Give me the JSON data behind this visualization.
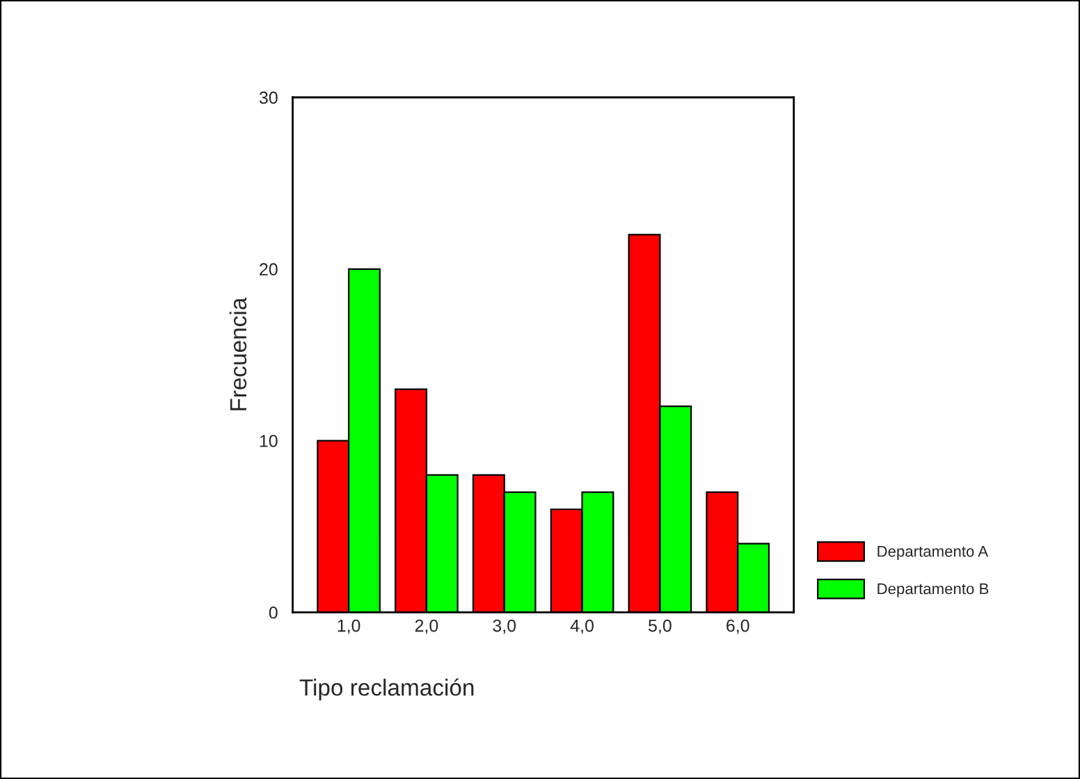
{
  "chart_data": {
    "type": "bar",
    "xlabel": "Tipo reclamación",
    "ylabel": "Frecuencia",
    "categories": [
      "1,0",
      "2,0",
      "3,0",
      "4,0",
      "5,0",
      "6,0"
    ],
    "series": [
      {
        "name": "Departamento A",
        "color": "#ff0000",
        "values": [
          10,
          13,
          8,
          6,
          22,
          7
        ]
      },
      {
        "name": "Departamento B",
        "color": "#00ff00",
        "values": [
          20,
          8,
          7,
          7,
          12,
          4
        ]
      }
    ],
    "ylim": [
      0,
      30
    ],
    "yticks": [
      0,
      10,
      20,
      30
    ],
    "grid": false,
    "legend": "right"
  }
}
